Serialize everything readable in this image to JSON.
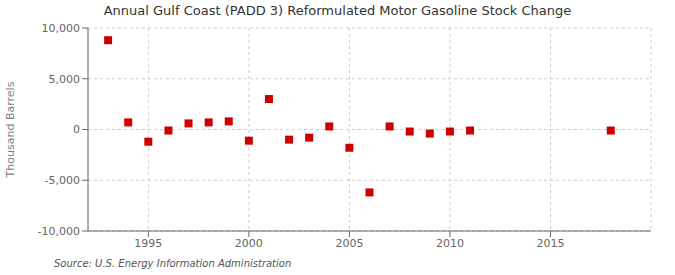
{
  "chart_data": {
    "type": "scatter",
    "title": "Annual Gulf Coast (PADD 3) Reformulated Motor Gasoline Stock Change",
    "ylabel": "Thousand Barrels",
    "annotations": [
      "Source: U.S. Energy Information Administration"
    ],
    "x": [
      1993,
      1994,
      1995,
      1996,
      1997,
      1998,
      1999,
      2000,
      2001,
      2002,
      2003,
      2004,
      2005,
      2006,
      2007,
      2008,
      2009,
      2010,
      2011,
      2018
    ],
    "values": [
      8800,
      700,
      -1200,
      -100,
      600,
      700,
      800,
      -1100,
      3000,
      -1000,
      -800,
      300,
      -1800,
      -6200,
      300,
      -200,
      -400,
      -200,
      -100,
      -100
    ],
    "color": "#cc0000",
    "marker": "square",
    "xlim": [
      1992,
      2020
    ],
    "ylim": [
      -10000,
      10000
    ],
    "xticks": [
      1995,
      2000,
      2005,
      2010,
      2015
    ],
    "yticks": [
      {
        "value": -10000,
        "label": "-10,000"
      },
      {
        "value": -5000,
        "label": "-5,000"
      },
      0,
      {
        "value": 5000,
        "label": "5,000"
      },
      {
        "value": 10000,
        "label": "10,000"
      }
    ],
    "grid": true
  }
}
